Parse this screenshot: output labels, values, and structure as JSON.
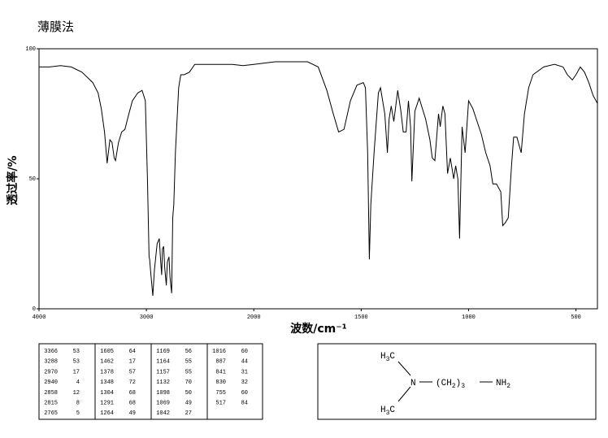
{
  "chart_data": {
    "type": "line",
    "title": "薄膜法",
    "x_label": "波数/cm⁻¹",
    "y_label": "透过率/%",
    "color": "#000000",
    "xlim": [
      4000,
      400
    ],
    "x_scale_break": 2000,
    "xticks": [
      4000,
      3000,
      2000,
      1500,
      1000,
      500
    ],
    "ylim": [
      0,
      100
    ],
    "yticks": [
      0,
      50,
      100
    ],
    "grid": false,
    "x": [
      4000,
      3900,
      3800,
      3700,
      3600,
      3500,
      3450,
      3420,
      3390,
      3366,
      3340,
      3320,
      3300,
      3288,
      3260,
      3230,
      3200,
      3170,
      3130,
      3080,
      3040,
      3010,
      2990,
      2975,
      2970,
      2960,
      2940,
      2925,
      2900,
      2880,
      2870,
      2858,
      2850,
      2840,
      2830,
      2815,
      2805,
      2790,
      2780,
      2765,
      2755,
      2745,
      2730,
      2700,
      2680,
      2650,
      2600,
      2550,
      2500,
      2400,
      2300,
      2200,
      2100,
      2000,
      1900,
      1800,
      1750,
      1700,
      1660,
      1630,
      1605,
      1580,
      1550,
      1520,
      1490,
      1480,
      1470,
      1462,
      1455,
      1440,
      1420,
      1410,
      1390,
      1378,
      1370,
      1360,
      1348,
      1330,
      1315,
      1304,
      1291,
      1280,
      1270,
      1264,
      1250,
      1230,
      1200,
      1180,
      1169,
      1157,
      1140,
      1132,
      1120,
      1110,
      1098,
      1085,
      1069,
      1060,
      1050,
      1042,
      1030,
      1016,
      1000,
      980,
      960,
      940,
      920,
      900,
      887,
      870,
      850,
      841,
      830,
      815,
      800,
      790,
      775,
      755,
      740,
      720,
      700,
      650,
      600,
      560,
      540,
      517,
      500,
      480,
      460,
      440,
      420,
      400
    ],
    "values": [
      93,
      93,
      93.5,
      93,
      91,
      87,
      83,
      77,
      68,
      56,
      65,
      64,
      58,
      57,
      64,
      68,
      69,
      74,
      80,
      83,
      84,
      80,
      50,
      20,
      19,
      14,
      5,
      15,
      25,
      27,
      20,
      13,
      23,
      24,
      16,
      9,
      18,
      20,
      12,
      6,
      35,
      40,
      60,
      85,
      90,
      90,
      91,
      94,
      94,
      94,
      94,
      94,
      93.5,
      94,
      95,
      95,
      95,
      93,
      84,
      75,
      68,
      69,
      80,
      86,
      87,
      85,
      60,
      19,
      40,
      60,
      83,
      85,
      75,
      60,
      73,
      78,
      72,
      84,
      76,
      68,
      68,
      80,
      70,
      49,
      76,
      81,
      73,
      65,
      58,
      57,
      75,
      70,
      78,
      75,
      52,
      58,
      50,
      55,
      50,
      27,
      70,
      60,
      80,
      77,
      72,
      67,
      60,
      55,
      48,
      48,
      45,
      32,
      33,
      35,
      55,
      66,
      66,
      60,
      75,
      85,
      90,
      93,
      94,
      93,
      90,
      88,
      90,
      93,
      91,
      87,
      82,
      79
    ]
  },
  "peak_table": {
    "rows": [
      [
        [
          "3366",
          "53"
        ],
        [
          "1605",
          "64"
        ],
        [
          "1169",
          "56"
        ],
        [
          "1016",
          "60"
        ]
      ],
      [
        [
          "3288",
          "53"
        ],
        [
          "1462",
          "17"
        ],
        [
          "1164",
          "55"
        ],
        [
          "887",
          "44"
        ]
      ],
      [
        [
          "2970",
          "17"
        ],
        [
          "1378",
          "57"
        ],
        [
          "1157",
          "55"
        ],
        [
          "841",
          "31"
        ]
      ],
      [
        [
          "2940",
          "4"
        ],
        [
          "1348",
          "72"
        ],
        [
          "1132",
          "70"
        ],
        [
          "830",
          "32"
        ]
      ],
      [
        [
          "2858",
          "12"
        ],
        [
          "1304",
          "68"
        ],
        [
          "1098",
          "50"
        ],
        [
          "755",
          "60"
        ]
      ],
      [
        [
          "2815",
          "8"
        ],
        [
          "1291",
          "68"
        ],
        [
          "1069",
          "49"
        ],
        [
          "517",
          "84"
        ]
      ],
      [
        [
          "2765",
          "5"
        ],
        [
          "1264",
          "49"
        ],
        [
          "1042",
          "27"
        ]
      ]
    ]
  },
  "structure": {
    "methyl_top": [
      "H",
      "3",
      "C"
    ],
    "nitrogen": "N",
    "chain": [
      "(CH",
      "2",
      ")",
      "3"
    ],
    "amine": [
      "NH",
      "2"
    ],
    "methyl_bottom": [
      "H",
      "3",
      "C"
    ]
  }
}
